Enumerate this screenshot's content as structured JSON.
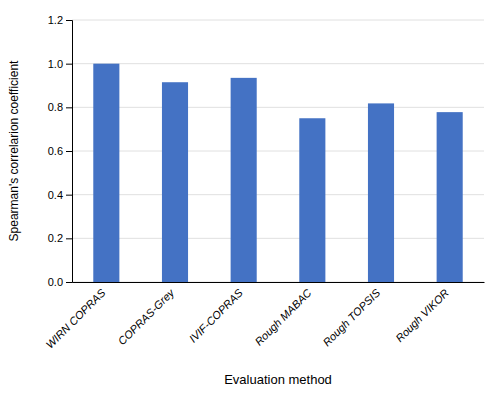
{
  "chart_data": {
    "type": "bar",
    "xlabel": "Evaluation method",
    "ylabel": "Spearman's correlarion coefficient",
    "categories": [
      "WIRN COPRAS",
      "COPRAS-Grey",
      "IVIF-COPRAS",
      "Rough MABAC",
      "Rough TOPSIS",
      "Rough VIKOR"
    ],
    "values": [
      1.0,
      0.915,
      0.935,
      0.75,
      0.818,
      0.778
    ],
    "color": "#4472C4",
    "ylim": [
      0,
      1.2
    ],
    "yticks": [
      {
        "value": 0,
        "label": "0.0"
      },
      0.2,
      0.4,
      0.6,
      0.8,
      {
        "value": 1.0,
        "label": "1.0"
      },
      1.2
    ],
    "grid": true
  }
}
